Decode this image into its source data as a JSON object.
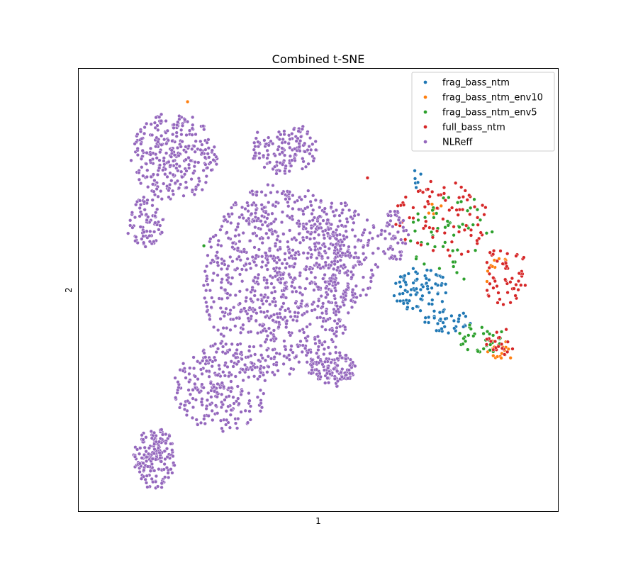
{
  "chart_data": {
    "type": "scatter",
    "title": "Combined t-SNE",
    "xlabel": "1",
    "ylabel": "2",
    "xlim": [
      0,
      100
    ],
    "ylim": [
      0,
      100
    ],
    "grid": false,
    "xticks": false,
    "yticks": false,
    "legend": {
      "location": "top-right"
    },
    "series": [
      {
        "name": "frag_bass_ntm",
        "color": "#1f77b4",
        "clusters": [
          {
            "cx": 71.5,
            "cy": 50,
            "rx": 6,
            "ry": 5,
            "count": 80,
            "seed": 101
          },
          {
            "cx": 77,
            "cy": 43,
            "rx": 5,
            "ry": 2.8,
            "count": 40,
            "seed": 102
          },
          {
            "cx": 70.5,
            "cy": 74,
            "rx": 1.5,
            "ry": 3,
            "count": 6,
            "seed": 103
          }
        ]
      },
      {
        "name": "frag_bass_ntm_env10",
        "color": "#ff7f0e",
        "clusters": [
          {
            "cx": 88,
            "cy": 36,
            "rx": 2.8,
            "ry": 3,
            "count": 20,
            "seed": 201
          },
          {
            "cx": 87,
            "cy": 54,
            "rx": 3,
            "ry": 4,
            "count": 10,
            "seed": 202
          },
          {
            "cx": 74,
            "cy": 69,
            "rx": 2,
            "ry": 2,
            "count": 5,
            "seed": 203
          },
          {
            "cx": 23,
            "cy": 92.5,
            "rx": 0.3,
            "ry": 0.3,
            "count": 1,
            "seed": 204
          }
        ]
      },
      {
        "name": "frag_bass_ntm_env5",
        "color": "#2ca02c",
        "clusters": [
          {
            "cx": 78,
            "cy": 62,
            "rx": 9,
            "ry": 10,
            "count": 55,
            "seed": 301
          },
          {
            "cx": 84,
            "cy": 39,
            "rx": 5,
            "ry": 3.5,
            "count": 35,
            "seed": 302
          },
          {
            "cx": 26,
            "cy": 60,
            "rx": 0.3,
            "ry": 0.3,
            "count": 1,
            "seed": 303
          }
        ]
      },
      {
        "name": "full_bass_ntm",
        "color": "#d62728",
        "clusters": [
          {
            "cx": 76,
            "cy": 66,
            "rx": 10,
            "ry": 9,
            "count": 80,
            "seed": 401
          },
          {
            "cx": 89,
            "cy": 53,
            "rx": 5,
            "ry": 7,
            "count": 55,
            "seed": 402
          },
          {
            "cx": 88,
            "cy": 38,
            "rx": 3,
            "ry": 3.5,
            "count": 20,
            "seed": 403
          },
          {
            "cx": 60.5,
            "cy": 75,
            "rx": 0.3,
            "ry": 0.3,
            "count": 1,
            "seed": 404
          }
        ]
      },
      {
        "name": "NLReff",
        "color": "#9467bd",
        "clusters": [
          {
            "cx": 42,
            "cy": 52,
            "rx": 16,
            "ry": 22,
            "count": 900,
            "seed": 501
          },
          {
            "cx": 20,
            "cy": 80,
            "rx": 9,
            "ry": 10,
            "count": 300,
            "seed": 502
          },
          {
            "cx": 14,
            "cy": 65,
            "rx": 4,
            "ry": 6,
            "count": 80,
            "seed": 503
          },
          {
            "cx": 16,
            "cy": 12,
            "rx": 4.5,
            "ry": 7,
            "count": 180,
            "seed": 504
          },
          {
            "cx": 53,
            "cy": 32,
            "rx": 5,
            "ry": 4,
            "count": 120,
            "seed": 505
          },
          {
            "cx": 43,
            "cy": 82,
            "rx": 7,
            "ry": 6,
            "count": 140,
            "seed": 506
          },
          {
            "cx": 66,
            "cy": 62,
            "rx": 3,
            "ry": 6,
            "count": 60,
            "seed": 507
          },
          {
            "cx": 30,
            "cy": 28,
            "rx": 10,
            "ry": 10,
            "count": 250,
            "seed": 508
          },
          {
            "cx": 55,
            "cy": 58,
            "rx": 8,
            "ry": 12,
            "count": 220,
            "seed": 509
          }
        ]
      }
    ]
  }
}
